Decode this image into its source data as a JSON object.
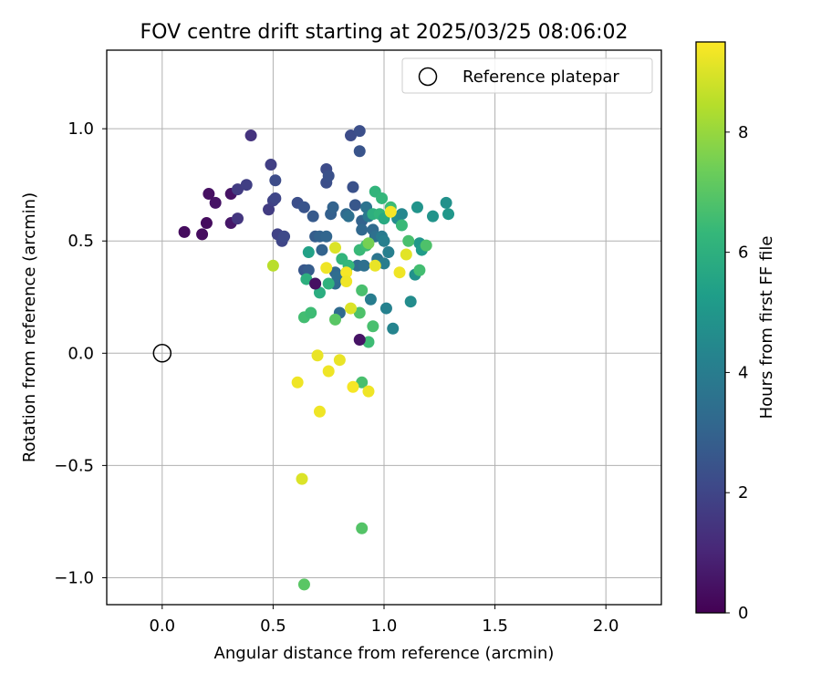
{
  "chart_data": {
    "type": "scatter",
    "title": "FOV centre drift starting at 2025/03/25 08:06:02",
    "xlabel": "Angular distance from reference (arcmin)",
    "ylabel": "Rotation from reference (arcmin)",
    "xlim": [
      -0.25,
      2.25
    ],
    "ylim": [
      -1.12,
      1.35
    ],
    "xticks": [
      0.0,
      0.5,
      1.0,
      1.5,
      2.0
    ],
    "xtick_labels": [
      "0.0",
      "0.5",
      "1.0",
      "1.5",
      "2.0"
    ],
    "yticks": [
      -1.0,
      -0.5,
      0.0,
      0.5,
      1.0
    ],
    "ytick_labels": [
      "−1.0",
      "−0.5",
      "0.0",
      "0.5",
      "1.0"
    ],
    "grid": true,
    "legend": {
      "location": "upper-right",
      "entries": [
        "Reference platepar"
      ]
    },
    "reference_point": {
      "x": 0.0,
      "y": 0.0,
      "marker": "open-circle"
    },
    "colorbar": {
      "label": "Hours from first FF file",
      "range": [
        0,
        9.5
      ],
      "ticks": [
        0,
        2,
        4,
        6,
        8
      ],
      "tick_labels": [
        "0",
        "2",
        "4",
        "6",
        "8"
      ],
      "colormap": "viridis",
      "colormap_stops": [
        "#440154",
        "#482878",
        "#3e4989",
        "#31688e",
        "#26828e",
        "#1f9e89",
        "#35b779",
        "#6ece58",
        "#b5de2b",
        "#fde725"
      ]
    },
    "points": [
      [
        0.1,
        0.54,
        0.3
      ],
      [
        0.18,
        0.53,
        0.3
      ],
      [
        0.2,
        0.58,
        0.3
      ],
      [
        0.21,
        0.71,
        0.4
      ],
      [
        0.24,
        0.67,
        0.5
      ],
      [
        0.31,
        0.71,
        0.5
      ],
      [
        0.31,
        0.58,
        0.6
      ],
      [
        0.34,
        0.6,
        1.5
      ],
      [
        0.34,
        0.73,
        1.7
      ],
      [
        0.38,
        0.75,
        1.8
      ],
      [
        0.4,
        0.97,
        1.4
      ],
      [
        0.48,
        0.64,
        1.7
      ],
      [
        0.49,
        0.84,
        1.8
      ],
      [
        0.5,
        0.68,
        1.9
      ],
      [
        0.51,
        0.69,
        2.0
      ],
      [
        0.51,
        0.77,
        2.2
      ],
      [
        0.52,
        0.53,
        1.9
      ],
      [
        0.54,
        0.5,
        2.0
      ],
      [
        0.55,
        0.52,
        2.1
      ],
      [
        0.61,
        0.67,
        2.3
      ],
      [
        0.64,
        0.65,
        2.5
      ],
      [
        0.64,
        0.37,
        2.6
      ],
      [
        0.66,
        0.37,
        2.8
      ],
      [
        0.68,
        0.61,
        2.7
      ],
      [
        0.69,
        0.52,
        2.8
      ],
      [
        0.71,
        0.52,
        3.0
      ],
      [
        0.72,
        0.46,
        3.0
      ],
      [
        0.74,
        0.52,
        3.1
      ],
      [
        0.74,
        0.76,
        2.3
      ],
      [
        0.74,
        0.82,
        2.2
      ],
      [
        0.75,
        0.79,
        2.4
      ],
      [
        0.76,
        0.62,
        2.9
      ],
      [
        0.77,
        0.65,
        3.0
      ],
      [
        0.78,
        0.36,
        3.2
      ],
      [
        0.78,
        0.31,
        3.3
      ],
      [
        0.79,
        0.34,
        3.4
      ],
      [
        0.8,
        0.18,
        3.3
      ],
      [
        0.83,
        0.62,
        3.2
      ],
      [
        0.84,
        0.61,
        3.5
      ],
      [
        0.85,
        0.97,
        2.2
      ],
      [
        0.86,
        0.74,
        2.4
      ],
      [
        0.87,
        0.66,
        2.6
      ],
      [
        0.88,
        0.39,
        3.3
      ],
      [
        0.89,
        0.99,
        2.3
      ],
      [
        0.89,
        0.9,
        2.5
      ],
      [
        0.9,
        0.59,
        3.0
      ],
      [
        0.9,
        0.55,
        3.2
      ],
      [
        0.91,
        0.39,
        3.5
      ],
      [
        0.92,
        0.65,
        3.6
      ],
      [
        0.93,
        0.61,
        3.8
      ],
      [
        0.94,
        0.24,
        4.0
      ],
      [
        0.95,
        0.55,
        3.3
      ],
      [
        0.96,
        0.52,
        3.5
      ],
      [
        0.97,
        0.42,
        3.7
      ],
      [
        0.99,
        0.52,
        3.9
      ],
      [
        1.0,
        0.5,
        4.1
      ],
      [
        1.0,
        0.4,
        4.0
      ],
      [
        1.01,
        0.2,
        4.2
      ],
      [
        1.02,
        0.45,
        4.1
      ],
      [
        1.04,
        0.11,
        4.3
      ],
      [
        1.06,
        0.6,
        4.6
      ],
      [
        1.08,
        0.62,
        4.4
      ],
      [
        1.12,
        0.23,
        4.6
      ],
      [
        1.14,
        0.35,
        4.8
      ],
      [
        1.15,
        0.65,
        4.9
      ],
      [
        1.16,
        0.49,
        5.0
      ],
      [
        1.17,
        0.46,
        5.2
      ],
      [
        1.22,
        0.61,
        4.9
      ],
      [
        1.28,
        0.67,
        4.8
      ],
      [
        1.29,
        0.62,
        5.0
      ],
      [
        0.66,
        0.45,
        5.4
      ],
      [
        0.69,
        0.31,
        5.6
      ],
      [
        0.65,
        0.33,
        6.0
      ],
      [
        0.71,
        0.27,
        5.9
      ],
      [
        0.75,
        0.31,
        6.1
      ],
      [
        0.81,
        0.42,
        6.2
      ],
      [
        0.84,
        0.39,
        6.3
      ],
      [
        0.89,
        0.46,
        6.4
      ],
      [
        0.9,
        0.28,
        6.7
      ],
      [
        0.92,
        0.48,
        6.5
      ],
      [
        0.95,
        0.62,
        6.0
      ],
      [
        0.96,
        0.72,
        6.2
      ],
      [
        0.98,
        0.62,
        6.2
      ],
      [
        0.99,
        0.69,
        6.3
      ],
      [
        1.0,
        0.6,
        5.8
      ],
      [
        1.03,
        0.65,
        6.5
      ],
      [
        1.08,
        0.57,
        6.4
      ],
      [
        1.11,
        0.5,
        6.7
      ],
      [
        1.16,
        0.37,
        6.6
      ],
      [
        1.19,
        0.48,
        6.8
      ],
      [
        0.64,
        0.16,
        6.6
      ],
      [
        0.67,
        0.18,
        6.5
      ],
      [
        0.78,
        0.15,
        7.0
      ],
      [
        0.89,
        0.18,
        6.8
      ],
      [
        0.93,
        0.05,
        6.5
      ],
      [
        0.95,
        0.12,
        6.7
      ],
      [
        0.9,
        -0.13,
        6.7
      ],
      [
        0.9,
        -0.78,
        6.9
      ],
      [
        0.64,
        -1.03,
        7.0
      ],
      [
        0.93,
        0.49,
        7.5
      ],
      [
        0.89,
        0.06,
        0.5
      ],
      [
        0.69,
        0.31,
        0.4
      ],
      [
        0.5,
        0.39,
        8.5
      ],
      [
        0.78,
        0.47,
        9.0
      ],
      [
        0.74,
        0.38,
        9.3
      ],
      [
        0.83,
        0.36,
        9.4
      ],
      [
        0.83,
        0.32,
        9.3
      ],
      [
        0.85,
        0.2,
        9.0
      ],
      [
        0.96,
        0.39,
        9.2
      ],
      [
        1.03,
        0.63,
        9.4
      ],
      [
        1.07,
        0.36,
        9.3
      ],
      [
        1.1,
        0.44,
        9.1
      ],
      [
        0.7,
        -0.01,
        9.2
      ],
      [
        0.75,
        -0.08,
        9.3
      ],
      [
        0.8,
        -0.03,
        9.2
      ],
      [
        0.61,
        -0.13,
        9.3
      ],
      [
        0.71,
        -0.26,
        9.3
      ],
      [
        0.86,
        -0.15,
        9.4
      ],
      [
        0.93,
        -0.17,
        9.3
      ],
      [
        0.63,
        -0.56,
        9.0
      ]
    ]
  }
}
